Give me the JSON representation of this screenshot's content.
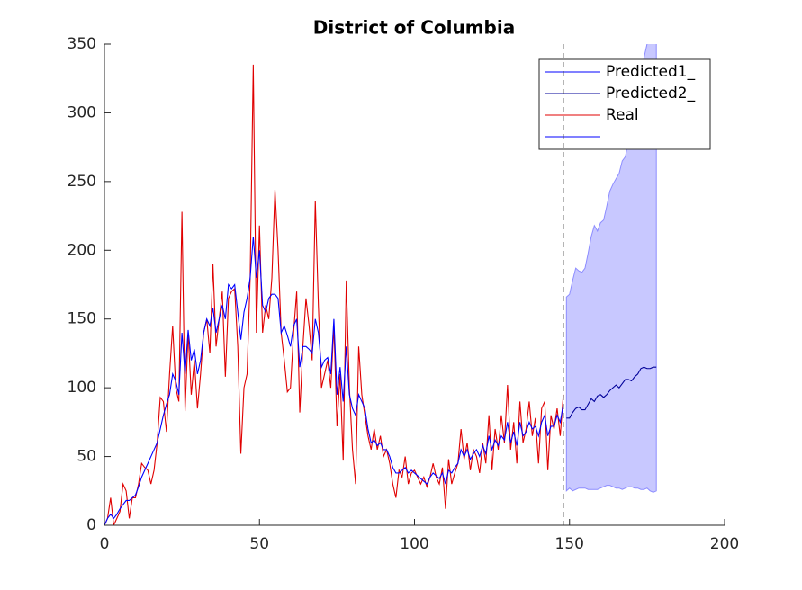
{
  "chart_data": {
    "type": "line",
    "title": "District of Columbia",
    "xlim": [
      0,
      200
    ],
    "xticks": [
      0,
      50,
      100,
      150,
      200
    ],
    "ylim": [
      0,
      350
    ],
    "yticks": [
      0,
      50,
      100,
      150,
      200,
      250,
      300,
      350
    ],
    "vline": 148,
    "legend": "northeast",
    "series": [
      {
        "name": "Predicted1_",
        "color": "#0000ff",
        "x": [
          0,
          1,
          2,
          3,
          4,
          5,
          6,
          7,
          8,
          9,
          10,
          11,
          12,
          13,
          14,
          15,
          16,
          17,
          18,
          19,
          20,
          21,
          22,
          23,
          24,
          25,
          26,
          27,
          28,
          29,
          30,
          31,
          32,
          33,
          34,
          35,
          36,
          37,
          38,
          39,
          40,
          41,
          42,
          43,
          44,
          45,
          46,
          47,
          48,
          49,
          50,
          51,
          52,
          53,
          54,
          55,
          56,
          57,
          58,
          59,
          60,
          61,
          62,
          63,
          64,
          65,
          66,
          67,
          68,
          69,
          70,
          71,
          72,
          73,
          74,
          75,
          76,
          77,
          78,
          79,
          80,
          81,
          82,
          83,
          84,
          85,
          86,
          87,
          88,
          89,
          90,
          91,
          92,
          93,
          94,
          95,
          96,
          97,
          98,
          99,
          100,
          101,
          102,
          103,
          104,
          105,
          106,
          107,
          108,
          109,
          110,
          111,
          112,
          113,
          114,
          115,
          116,
          117,
          118,
          119,
          120,
          121,
          122,
          123,
          124,
          125,
          126,
          127,
          128,
          129,
          130,
          131,
          132,
          133,
          134,
          135,
          136,
          137,
          138,
          139,
          140,
          141,
          142,
          143,
          144,
          145,
          146,
          147,
          148
        ],
        "values": [
          0,
          5,
          8,
          5,
          8,
          12,
          15,
          18,
          18,
          20,
          22,
          28,
          35,
          40,
          45,
          50,
          55,
          60,
          70,
          80,
          88,
          95,
          110,
          105,
          95,
          140,
          110,
          142,
          120,
          128,
          110,
          120,
          140,
          150,
          145,
          158,
          140,
          150,
          160,
          150,
          175,
          172,
          175,
          155,
          135,
          155,
          165,
          180,
          210,
          180,
          200,
          160,
          155,
          165,
          168,
          168,
          165,
          140,
          145,
          138,
          130,
          145,
          150,
          115,
          130,
          130,
          128,
          125,
          150,
          140,
          115,
          120,
          122,
          110,
          150,
          95,
          115,
          90,
          130,
          95,
          85,
          80,
          95,
          90,
          85,
          70,
          60,
          62,
          58,
          60,
          55,
          55,
          50,
          42,
          38,
          38,
          40,
          42,
          38,
          40,
          38,
          36,
          34,
          32,
          30,
          35,
          38,
          36,
          34,
          38,
          30,
          40,
          38,
          42,
          45,
          55,
          50,
          55,
          48,
          52,
          55,
          50,
          58,
          52,
          65,
          55,
          62,
          58,
          65,
          62,
          75,
          60,
          68,
          58,
          75,
          65,
          68,
          75,
          70,
          72,
          65,
          75,
          80,
          65,
          72,
          72,
          80,
          75,
          88
        ]
      },
      {
        "name": "Predicted2_",
        "color": "#000099",
        "x": [
          149,
          150,
          151,
          152,
          153,
          154,
          155,
          156,
          157,
          158,
          159,
          160,
          161,
          162,
          163,
          164,
          165,
          166,
          167,
          168,
          169,
          170,
          171,
          172,
          173,
          174,
          175,
          176,
          177,
          178
        ],
        "values": [
          78,
          78,
          82,
          85,
          86,
          84,
          84,
          88,
          92,
          90,
          94,
          95,
          93,
          95,
          98,
          100,
          102,
          100,
          103,
          106,
          106,
          105,
          108,
          110,
          114,
          115,
          114,
          114,
          115,
          115
        ]
      },
      {
        "name": "Real",
        "color": "#e00000",
        "x": [
          0,
          1,
          2,
          3,
          4,
          5,
          6,
          7,
          8,
          9,
          10,
          11,
          12,
          13,
          14,
          15,
          16,
          17,
          18,
          19,
          20,
          21,
          22,
          23,
          24,
          25,
          26,
          27,
          28,
          29,
          30,
          31,
          32,
          33,
          34,
          35,
          36,
          37,
          38,
          39,
          40,
          41,
          42,
          43,
          44,
          45,
          46,
          47,
          48,
          49,
          50,
          51,
          52,
          53,
          54,
          55,
          56,
          57,
          58,
          59,
          60,
          61,
          62,
          63,
          64,
          65,
          66,
          67,
          68,
          69,
          70,
          71,
          72,
          73,
          74,
          75,
          76,
          77,
          78,
          79,
          80,
          81,
          82,
          83,
          84,
          85,
          86,
          87,
          88,
          89,
          90,
          91,
          92,
          93,
          94,
          95,
          96,
          97,
          98,
          99,
          100,
          101,
          102,
          103,
          104,
          105,
          106,
          107,
          108,
          109,
          110,
          111,
          112,
          113,
          114,
          115,
          116,
          117,
          118,
          119,
          120,
          121,
          122,
          123,
          124,
          125,
          126,
          127,
          128,
          129,
          130,
          131,
          132,
          133,
          134,
          135,
          136,
          137,
          138,
          139,
          140,
          141,
          142,
          143,
          144,
          145,
          146,
          147,
          148
        ],
        "values": [
          0,
          5,
          20,
          0,
          5,
          10,
          30,
          25,
          5,
          20,
          20,
          30,
          45,
          42,
          40,
          30,
          40,
          60,
          93,
          90,
          68,
          110,
          145,
          100,
          90,
          228,
          83,
          140,
          95,
          120,
          85,
          110,
          140,
          150,
          125,
          190,
          130,
          150,
          170,
          108,
          165,
          170,
          172,
          130,
          52,
          100,
          110,
          180,
          335,
          140,
          218,
          140,
          160,
          150,
          180,
          244,
          200,
          140,
          120,
          97,
          100,
          140,
          170,
          82,
          130,
          165,
          145,
          120,
          236,
          160,
          100,
          110,
          120,
          100,
          145,
          72,
          110,
          47,
          178,
          100,
          55,
          30,
          130,
          95,
          80,
          65,
          55,
          70,
          55,
          65,
          50,
          55,
          45,
          30,
          20,
          40,
          35,
          50,
          30,
          38,
          40,
          35,
          30,
          35,
          28,
          35,
          45,
          35,
          30,
          42,
          12,
          48,
          30,
          38,
          45,
          70,
          48,
          60,
          40,
          55,
          50,
          38,
          60,
          45,
          80,
          40,
          70,
          55,
          80,
          60,
          102,
          55,
          75,
          45,
          90,
          60,
          70,
          90,
          65,
          78,
          45,
          85,
          90,
          40,
          80,
          70,
          85,
          65,
          95
        ]
      },
      {
        "color": "#0000ff",
        "fill": "#c8c8ff",
        "edge": "#8c8cff",
        "x": [
          149,
          150,
          151,
          152,
          153,
          154,
          155,
          156,
          157,
          158,
          159,
          160,
          161,
          162,
          163,
          164,
          165,
          166,
          167,
          168,
          169,
          170,
          171,
          172,
          173,
          174,
          175,
          176,
          177,
          178
        ],
        "upper": [
          166,
          168,
          178,
          187,
          185,
          184,
          187,
          198,
          210,
          218,
          214,
          220,
          222,
          232,
          243,
          248,
          252,
          256,
          265,
          268,
          280,
          290,
          300,
          310,
          320,
          340,
          350,
          360,
          370,
          380
        ],
        "lower": [
          25,
          27,
          25,
          26,
          27,
          27,
          27,
          26,
          26,
          26,
          26,
          27,
          28,
          29,
          29,
          28,
          27,
          27,
          26,
          27,
          28,
          28,
          27,
          27,
          26,
          26,
          27,
          25,
          24,
          25
        ]
      }
    ]
  }
}
